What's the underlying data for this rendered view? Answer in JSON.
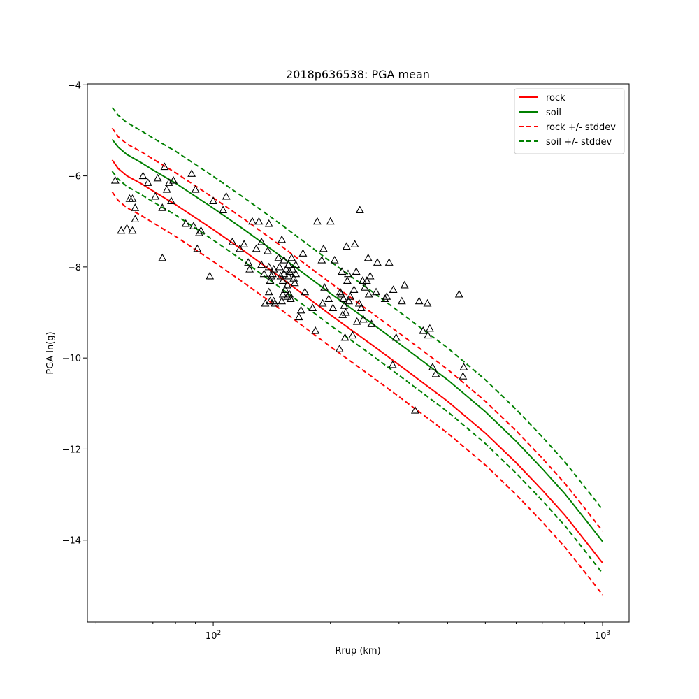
{
  "chart_data": {
    "type": "line",
    "title": "2018p636538: PGA mean",
    "xlabel": "Rrup (km)",
    "ylabel": "PGA ln(g)",
    "xscale": "log",
    "xlim": [
      47.5,
      1170
    ],
    "ylim": [
      -15.8,
      -3.98
    ],
    "x_ticks": [
      {
        "value": 100,
        "base": "10",
        "exp": "2"
      },
      {
        "value": 1000,
        "base": "10",
        "exp": "3"
      }
    ],
    "y_ticks": [
      {
        "value": -4,
        "label": "−4"
      },
      {
        "value": -6,
        "label": "−6"
      },
      {
        "value": -8,
        "label": "−8"
      },
      {
        "value": -10,
        "label": "−10"
      },
      {
        "value": -12,
        "label": "−12"
      },
      {
        "value": -14,
        "label": "−14"
      }
    ],
    "grid": false,
    "legend_position": "upper-right",
    "x": [
      55,
      57,
      60,
      65,
      70,
      80,
      100,
      120,
      150,
      200,
      250,
      300,
      400,
      500,
      600,
      700,
      800,
      900,
      1000
    ],
    "series": [
      {
        "name": "rock",
        "color": "#ff0000",
        "style": "solid",
        "values": [
          -5.65,
          -5.84,
          -6.0,
          -6.16,
          -6.33,
          -6.63,
          -7.18,
          -7.65,
          -8.25,
          -9.05,
          -9.65,
          -10.15,
          -10.95,
          -11.65,
          -12.3,
          -12.9,
          -13.45,
          -14.0,
          -14.5
        ]
      },
      {
        "name": "soil",
        "color": "#008000",
        "style": "solid",
        "values": [
          -5.2,
          -5.37,
          -5.53,
          -5.7,
          -5.87,
          -6.16,
          -6.71,
          -7.18,
          -7.78,
          -8.58,
          -9.18,
          -9.68,
          -10.48,
          -11.18,
          -11.83,
          -12.43,
          -12.98,
          -13.53,
          -14.03
        ]
      },
      {
        "name": "rock +/- stddev",
        "color": "#ff0000",
        "style": "dashed",
        "values": [
          -4.95,
          -5.14,
          -5.3,
          -5.46,
          -5.63,
          -5.93,
          -6.48,
          -6.95,
          -7.55,
          -8.35,
          -8.95,
          -9.45,
          -10.25,
          -10.95,
          -11.6,
          -12.2,
          -12.75,
          -13.3,
          -13.8
        ]
      },
      {
        "name": "",
        "color": "#ff0000",
        "style": "dashed",
        "values": [
          -6.35,
          -6.54,
          -6.7,
          -6.86,
          -7.03,
          -7.33,
          -7.88,
          -8.35,
          -8.95,
          -9.75,
          -10.35,
          -10.85,
          -11.65,
          -12.35,
          -13.0,
          -13.6,
          -14.15,
          -14.7,
          -15.2
        ]
      },
      {
        "name": "soil +/- stddev",
        "color": "#008000",
        "style": "dashed",
        "values": [
          -4.5,
          -4.67,
          -4.83,
          -5.0,
          -5.17,
          -5.46,
          -6.01,
          -6.48,
          -7.08,
          -7.88,
          -8.48,
          -8.98,
          -9.78,
          -10.48,
          -11.13,
          -11.73,
          -12.28,
          -12.83,
          -13.33
        ]
      },
      {
        "name": "",
        "color": "#008000",
        "style": "dashed",
        "values": [
          -5.9,
          -6.07,
          -6.23,
          -6.4,
          -6.57,
          -6.86,
          -7.41,
          -7.88,
          -8.48,
          -9.28,
          -9.88,
          -10.38,
          -11.18,
          -11.88,
          -12.53,
          -13.13,
          -13.68,
          -14.23,
          -14.73
        ]
      }
    ],
    "observations": {
      "marker": "triangle",
      "color": "#000000",
      "points": [
        [
          56,
          -6.1
        ],
        [
          58,
          -7.2
        ],
        [
          60,
          -7.15
        ],
        [
          61,
          -6.5
        ],
        [
          62,
          -7.2
        ],
        [
          62,
          -6.5
        ],
        [
          63,
          -6.95
        ],
        [
          63,
          -6.7
        ],
        [
          66,
          -6.0
        ],
        [
          68,
          -6.15
        ],
        [
          71,
          -6.45
        ],
        [
          72,
          -6.05
        ],
        [
          74,
          -6.7
        ],
        [
          74,
          -7.8
        ],
        [
          75,
          -5.8
        ],
        [
          76,
          -6.3
        ],
        [
          77,
          -6.15
        ],
        [
          78,
          -6.55
        ],
        [
          79,
          -6.1
        ],
        [
          85,
          -7.05
        ],
        [
          88,
          -5.95
        ],
        [
          89,
          -7.1
        ],
        [
          90,
          -6.3
        ],
        [
          91,
          -7.6
        ],
        [
          92,
          -7.25
        ],
        [
          93,
          -7.2
        ],
        [
          98,
          -8.2
        ],
        [
          100,
          -6.55
        ],
        [
          106,
          -6.75
        ],
        [
          108,
          -6.45
        ],
        [
          112,
          -7.45
        ],
        [
          117,
          -7.6
        ],
        [
          120,
          -7.5
        ],
        [
          123,
          -7.9
        ],
        [
          124,
          -8.05
        ],
        [
          126,
          -7.0
        ],
        [
          129,
          -7.6
        ],
        [
          131,
          -7.0
        ],
        [
          133,
          -7.45
        ],
        [
          133,
          -7.95
        ],
        [
          135,
          -8.15
        ],
        [
          136,
          -8.8
        ],
        [
          138,
          -7.65
        ],
        [
          139,
          -7.05
        ],
        [
          139,
          -8.55
        ],
        [
          139,
          -8.0
        ],
        [
          140,
          -8.3
        ],
        [
          140,
          -8.75
        ],
        [
          141,
          -8.2
        ],
        [
          142,
          -8.15
        ],
        [
          143,
          -8.05
        ],
        [
          143,
          -8.75
        ],
        [
          144,
          -8.8
        ],
        [
          147,
          -7.8
        ],
        [
          148,
          -8.0
        ],
        [
          149,
          -8.2
        ],
        [
          150,
          -7.4
        ],
        [
          150,
          -8.75
        ],
        [
          151,
          -8.3
        ],
        [
          151,
          -8.6
        ],
        [
          152,
          -7.85
        ],
        [
          152,
          -8.15
        ],
        [
          153,
          -8.5
        ],
        [
          154,
          -8.05
        ],
        [
          155,
          -8.4
        ],
        [
          155,
          -8.65
        ],
        [
          156,
          -7.95
        ],
        [
          156,
          -8.2
        ],
        [
          157,
          -8.6
        ],
        [
          157,
          -8.1
        ],
        [
          158,
          -8.7
        ],
        [
          159,
          -7.8
        ],
        [
          160,
          -8.05
        ],
        [
          161,
          -8.25
        ],
        [
          162,
          -8.35
        ],
        [
          163,
          -7.95
        ],
        [
          163,
          -8.15
        ],
        [
          166,
          -9.1
        ],
        [
          168,
          -8.95
        ],
        [
          170,
          -7.7
        ],
        [
          172,
          -8.55
        ],
        [
          180,
          -8.9
        ],
        [
          183,
          -9.4
        ],
        [
          185,
          -7.0
        ],
        [
          190,
          -7.85
        ],
        [
          191,
          -8.8
        ],
        [
          192,
          -7.6
        ],
        [
          193,
          -8.45
        ],
        [
          198,
          -8.7
        ],
        [
          200,
          -7.0
        ],
        [
          203,
          -8.9
        ],
        [
          205,
          -7.85
        ],
        [
          211,
          -9.8
        ],
        [
          212,
          -8.55
        ],
        [
          213,
          -8.6
        ],
        [
          214,
          -8.1
        ],
        [
          215,
          -9.05
        ],
        [
          216,
          -8.7
        ],
        [
          217,
          -8.85
        ],
        [
          218,
          -9.55
        ],
        [
          219,
          -9.0
        ],
        [
          220,
          -7.55
        ],
        [
          221,
          -8.3
        ],
        [
          222,
          -8.15
        ],
        [
          223,
          -8.75
        ],
        [
          225,
          -8.65
        ],
        [
          228,
          -9.5
        ],
        [
          230,
          -8.5
        ],
        [
          231,
          -7.5
        ],
        [
          233,
          -8.1
        ],
        [
          234,
          -9.2
        ],
        [
          237,
          -8.8
        ],
        [
          238,
          -6.75
        ],
        [
          240,
          -8.9
        ],
        [
          242,
          -8.3
        ],
        [
          243,
          -9.15
        ],
        [
          245,
          -8.45
        ],
        [
          248,
          -8.3
        ],
        [
          250,
          -7.8
        ],
        [
          251,
          -8.6
        ],
        [
          253,
          -8.2
        ],
        [
          255,
          -9.25
        ],
        [
          262,
          -8.55
        ],
        [
          264,
          -7.9
        ],
        [
          276,
          -8.7
        ],
        [
          279,
          -8.65
        ],
        [
          283,
          -7.9
        ],
        [
          289,
          -10.15
        ],
        [
          290,
          -8.5
        ],
        [
          295,
          -9.55
        ],
        [
          305,
          -8.75
        ],
        [
          310,
          -8.4
        ],
        [
          330,
          -11.15
        ],
        [
          338,
          -8.75
        ],
        [
          346,
          -9.4
        ],
        [
          355,
          -8.8
        ],
        [
          356,
          -9.5
        ],
        [
          360,
          -9.35
        ],
        [
          366,
          -10.2
        ],
        [
          373,
          -10.35
        ],
        [
          428,
          -8.6
        ],
        [
          438,
          -10.4
        ],
        [
          440,
          -10.2
        ]
      ]
    }
  }
}
